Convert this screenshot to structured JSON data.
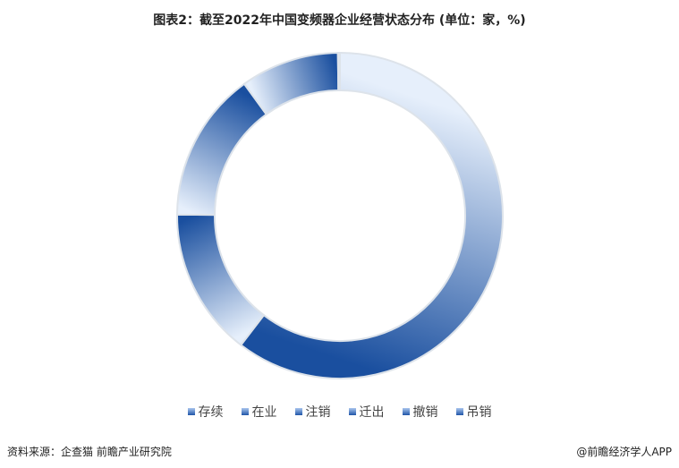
{
  "chart_data": {
    "type": "pie",
    "donut": true,
    "title": "图表2：截至2022年中国变频器企业经营状态分布 (单位：家，%)",
    "categories": [
      "存续",
      "在业",
      "注销",
      "迁出",
      "撤销",
      "吊销"
    ],
    "values": [
      60.4,
      14.7,
      14.9,
      9.8,
      0.1,
      0.1
    ],
    "legend_position": "bottom",
    "colors": {
      "light": "#e6effb",
      "dark": "#1a4f9f"
    }
  },
  "footer": {
    "source": "资料来源：企查猫 前瞻产业研究院",
    "brand": "@前瞻经济学人APP"
  }
}
